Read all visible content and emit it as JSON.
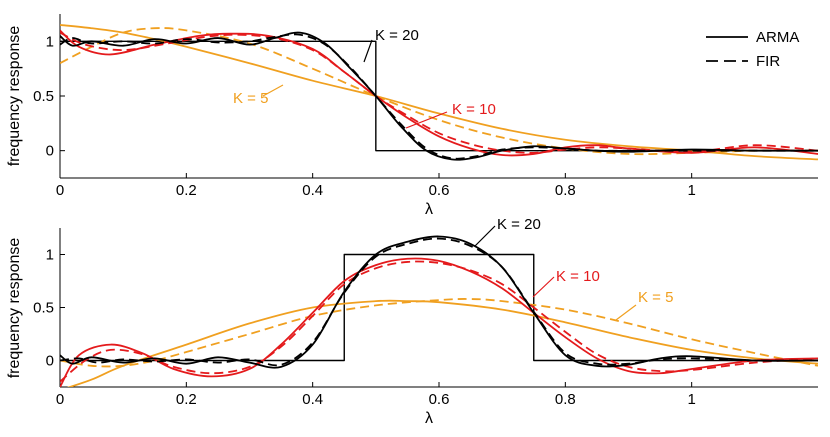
{
  "chart_data": [
    {
      "type": "line",
      "xlabel": "λ",
      "ylabel": "frequency response",
      "xlim": [
        0,
        1.2
      ],
      "ylim": [
        -0.25,
        1.25
      ],
      "xticks": [
        0,
        0.2,
        0.4,
        0.6,
        0.8,
        1
      ],
      "xtick_labels": [
        "0",
        "0.2",
        "0.4",
        "0.6",
        "0.8",
        "1"
      ],
      "yticks": [
        0,
        0.5,
        1
      ],
      "ytick_labels": [
        "0",
        "0.5",
        "1"
      ],
      "grid": false,
      "legend": {
        "placement": "top-right",
        "entries": [
          {
            "label": "ARMA",
            "style": "solid",
            "color": "#000000"
          },
          {
            "label": "FIR",
            "style": "dashed",
            "color": "#000000"
          }
        ]
      },
      "annotations": [
        {
          "text": "K = 20",
          "color": "#000000",
          "points_to": [
            0.45,
            0.9
          ]
        },
        {
          "text": "K = 10",
          "color": "#e41a1c",
          "points_to": [
            0.6,
            0.3
          ]
        },
        {
          "text": "K = 5",
          "color": "#f0a020",
          "points_to": [
            0.33,
            0.68
          ]
        }
      ],
      "series": [
        {
          "kind": "ideal",
          "style": "solid",
          "color": "#000000",
          "x": [
            0,
            0.5,
            0.5,
            1.2
          ],
          "y": [
            1,
            1,
            0,
            0
          ]
        },
        {
          "kind": "K=5 ARMA",
          "style": "solid",
          "color": "#f0a020",
          "x": [
            0,
            0.05,
            0.1,
            0.15,
            0.2,
            0.3,
            0.4,
            0.5,
            0.6,
            0.7,
            0.8,
            0.9,
            1.0,
            1.1,
            1.2
          ],
          "y": [
            1.15,
            1.12,
            1.08,
            1.02,
            0.95,
            0.8,
            0.64,
            0.5,
            0.34,
            0.2,
            0.1,
            0.04,
            0.0,
            -0.05,
            -0.08
          ]
        },
        {
          "kind": "K=5 FIR",
          "style": "dashed",
          "color": "#f0a020",
          "x": [
            0,
            0.05,
            0.1,
            0.15,
            0.2,
            0.3,
            0.4,
            0.5,
            0.6,
            0.7,
            0.8,
            0.9,
            1.0,
            1.1,
            1.2
          ],
          "y": [
            0.8,
            0.95,
            1.08,
            1.12,
            1.1,
            0.98,
            0.75,
            0.5,
            0.28,
            0.12,
            0.02,
            -0.03,
            -0.02,
            0.0,
            0.0
          ]
        },
        {
          "kind": "K=10 ARMA",
          "style": "solid",
          "color": "#e41a1c",
          "x": [
            0,
            0.03,
            0.08,
            0.15,
            0.22,
            0.27,
            0.33,
            0.4,
            0.45,
            0.5,
            0.55,
            0.6,
            0.65,
            0.7,
            0.75,
            0.8,
            0.85,
            0.9,
            1.0,
            1.1,
            1.2
          ],
          "y": [
            1.1,
            0.95,
            0.88,
            0.97,
            1.05,
            1.07,
            1.05,
            0.93,
            0.72,
            0.5,
            0.3,
            0.13,
            0.02,
            -0.04,
            -0.03,
            0.03,
            0.05,
            0.02,
            -0.02,
            0.03,
            -0.03
          ]
        },
        {
          "kind": "K=10 FIR",
          "style": "dashed",
          "color": "#e41a1c",
          "x": [
            0,
            0.04,
            0.1,
            0.17,
            0.23,
            0.28,
            0.34,
            0.4,
            0.45,
            0.5,
            0.55,
            0.6,
            0.65,
            0.7,
            0.75,
            0.8,
            0.85,
            0.9,
            1.0,
            1.1,
            1.2
          ],
          "y": [
            1.08,
            0.97,
            0.92,
            0.98,
            1.04,
            1.06,
            1.03,
            0.92,
            0.72,
            0.5,
            0.32,
            0.16,
            0.06,
            0.0,
            -0.02,
            0.01,
            0.03,
            0.02,
            -0.01,
            0.05,
            0.0
          ]
        },
        {
          "kind": "K=20 ARMA",
          "style": "solid",
          "color": "#000000",
          "x": [
            0,
            0.02,
            0.05,
            0.1,
            0.15,
            0.2,
            0.25,
            0.3,
            0.34,
            0.38,
            0.42,
            0.46,
            0.5,
            0.54,
            0.58,
            0.62,
            0.66,
            0.7,
            0.75,
            0.8,
            0.85,
            0.9,
            1.0,
            1.1,
            1.2
          ],
          "y": [
            1.05,
            0.96,
            1.0,
            0.96,
            1.02,
            0.98,
            1.03,
            0.97,
            1.03,
            1.08,
            0.98,
            0.75,
            0.5,
            0.22,
            0.0,
            -0.08,
            -0.06,
            0.0,
            0.04,
            0.02,
            0.0,
            -0.01,
            0.01,
            0.0,
            0.0
          ]
        },
        {
          "kind": "K=20 FIR",
          "style": "dashed",
          "color": "#000000",
          "x": [
            0,
            0.02,
            0.05,
            0.1,
            0.15,
            0.2,
            0.25,
            0.3,
            0.34,
            0.38,
            0.42,
            0.46,
            0.5,
            0.54,
            0.58,
            0.62,
            0.66,
            0.7,
            0.75,
            0.8,
            0.85,
            0.9,
            1.0,
            1.1,
            1.2
          ],
          "y": [
            0.97,
            1.03,
            0.98,
            1.0,
            0.98,
            1.02,
            0.99,
            1.0,
            1.04,
            1.06,
            0.97,
            0.76,
            0.5,
            0.24,
            0.02,
            -0.07,
            -0.05,
            0.01,
            0.03,
            0.02,
            0.0,
            0.0,
            0.0,
            0.0,
            0.0
          ]
        }
      ]
    },
    {
      "type": "line",
      "xlabel": "λ",
      "ylabel": "frequency response",
      "xlim": [
        0,
        1.2
      ],
      "ylim": [
        -0.25,
        1.25
      ],
      "xticks": [
        0,
        0.2,
        0.4,
        0.6,
        0.8,
        1
      ],
      "xtick_labels": [
        "0",
        "0.2",
        "0.4",
        "0.6",
        "0.8",
        "1"
      ],
      "yticks": [
        0,
        0.5,
        1
      ],
      "ytick_labels": [
        "0",
        "0.5",
        "1"
      ],
      "grid": false,
      "annotations": [
        {
          "text": "K = 20",
          "color": "#000000",
          "points_to": [
            0.68,
            1.1
          ]
        },
        {
          "text": "K = 10",
          "color": "#e41a1c",
          "points_to": [
            0.74,
            0.72
          ]
        },
        {
          "text": "K = 5",
          "color": "#f0a020",
          "points_to": [
            0.88,
            0.45
          ]
        }
      ],
      "series": [
        {
          "kind": "ideal",
          "style": "solid",
          "color": "#000000",
          "x": [
            0,
            0.45,
            0.45,
            0.75,
            0.75,
            1.2
          ],
          "y": [
            0,
            0,
            1,
            1,
            0,
            0
          ]
        },
        {
          "kind": "K=5 ARMA",
          "style": "solid",
          "color": "#f0a020",
          "x": [
            0,
            0.05,
            0.1,
            0.2,
            0.3,
            0.4,
            0.5,
            0.55,
            0.6,
            0.7,
            0.8,
            0.9,
            1.0,
            1.1,
            1.2
          ],
          "y": [
            -0.28,
            -0.18,
            -0.05,
            0.15,
            0.35,
            0.5,
            0.56,
            0.56,
            0.55,
            0.48,
            0.36,
            0.22,
            0.1,
            0.02,
            -0.03
          ]
        },
        {
          "kind": "K=5 FIR",
          "style": "dashed",
          "color": "#f0a020",
          "x": [
            0,
            0.05,
            0.1,
            0.15,
            0.2,
            0.3,
            0.4,
            0.5,
            0.6,
            0.65,
            0.7,
            0.8,
            0.9,
            1.0,
            1.1,
            1.2
          ],
          "y": [
            0.0,
            -0.05,
            -0.05,
            0.0,
            0.08,
            0.25,
            0.42,
            0.52,
            0.57,
            0.58,
            0.56,
            0.48,
            0.35,
            0.2,
            0.07,
            -0.05
          ]
        },
        {
          "kind": "K=10 ARMA",
          "style": "solid",
          "color": "#e41a1c",
          "x": [
            0,
            0.03,
            0.08,
            0.13,
            0.18,
            0.24,
            0.3,
            0.35,
            0.4,
            0.45,
            0.5,
            0.55,
            0.6,
            0.65,
            0.7,
            0.75,
            0.8,
            0.85,
            0.9,
            0.95,
            1.0,
            1.1,
            1.2
          ],
          "y": [
            -0.25,
            0.05,
            0.15,
            0.07,
            -0.08,
            -0.15,
            -0.08,
            0.15,
            0.45,
            0.75,
            0.9,
            0.96,
            0.94,
            0.84,
            0.68,
            0.45,
            0.22,
            0.02,
            -0.1,
            -0.12,
            -0.08,
            0.0,
            0.02
          ]
        },
        {
          "kind": "K=10 FIR",
          "style": "dashed",
          "color": "#e41a1c",
          "x": [
            0,
            0.04,
            0.08,
            0.13,
            0.18,
            0.24,
            0.3,
            0.35,
            0.4,
            0.45,
            0.5,
            0.55,
            0.6,
            0.65,
            0.7,
            0.75,
            0.8,
            0.85,
            0.9,
            0.95,
            1.0,
            1.1,
            1.2
          ],
          "y": [
            -0.2,
            0.0,
            0.1,
            0.06,
            -0.06,
            -0.12,
            -0.06,
            0.13,
            0.42,
            0.72,
            0.87,
            0.93,
            0.92,
            0.85,
            0.72,
            0.5,
            0.27,
            0.06,
            -0.06,
            -0.1,
            -0.09,
            -0.02,
            0.02
          ]
        },
        {
          "kind": "K=20 ARMA",
          "style": "solid",
          "color": "#000000",
          "x": [
            0,
            0.02,
            0.05,
            0.1,
            0.15,
            0.2,
            0.25,
            0.3,
            0.35,
            0.4,
            0.45,
            0.5,
            0.55,
            0.6,
            0.65,
            0.7,
            0.75,
            0.8,
            0.85,
            0.9,
            0.95,
            1.0,
            1.1,
            1.2
          ],
          "y": [
            0.05,
            -0.03,
            0.03,
            -0.02,
            0.02,
            -0.03,
            0.03,
            -0.02,
            -0.06,
            0.15,
            0.65,
            1.0,
            1.12,
            1.17,
            1.1,
            0.88,
            0.45,
            0.05,
            -0.05,
            -0.04,
            0.02,
            0.04,
            0.0,
            0.0
          ]
        },
        {
          "kind": "K=20 FIR",
          "style": "dashed",
          "color": "#000000",
          "x": [
            0,
            0.03,
            0.06,
            0.1,
            0.15,
            0.2,
            0.25,
            0.3,
            0.35,
            0.4,
            0.45,
            0.5,
            0.55,
            0.6,
            0.65,
            0.7,
            0.75,
            0.8,
            0.85,
            0.9,
            0.95,
            1.0,
            1.1,
            1.2
          ],
          "y": [
            0.0,
            0.02,
            -0.02,
            0.01,
            -0.01,
            0.01,
            -0.02,
            0.01,
            -0.04,
            0.17,
            0.64,
            0.98,
            1.1,
            1.15,
            1.08,
            0.88,
            0.46,
            0.07,
            -0.03,
            -0.03,
            0.01,
            0.02,
            0.0,
            0.0
          ]
        }
      ]
    }
  ]
}
